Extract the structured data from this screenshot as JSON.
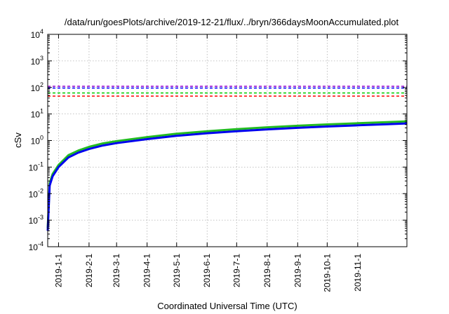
{
  "chart_data": {
    "type": "line",
    "title": "/data/run/goesPlots/archive/2019-12-21/flux/../bryn/366daysMoonAccumulated.plot",
    "xlabel": "Coordinated Universal Time (UTC)",
    "ylabel": "cSv",
    "yscale": "log",
    "ylim_exponents": [
      -4,
      4
    ],
    "y_tick_base": "10",
    "y_tick_exponents": [
      "-4",
      "-3",
      "-2",
      "-1",
      "0",
      "1",
      "2",
      "3",
      "4"
    ],
    "xlim": [
      "2018-12-21",
      "2019-12-21"
    ],
    "x_ticks": [
      "2019-1-1",
      "2019-2-1",
      "2019-3-1",
      "2019-4-1",
      "2019-5-1",
      "2019-6-1",
      "2019-7-1",
      "2019-8-1",
      "2019-9-1",
      "2019-10-1",
      "2019-11-1"
    ],
    "grid": true,
    "reference_lines": [
      {
        "y": 110,
        "color": "#9400d3",
        "style": "dashed"
      },
      {
        "y": 95,
        "color": "#0000ff",
        "style": "dashed"
      },
      {
        "y": 62,
        "color": "#00cc00",
        "style": "dashed"
      },
      {
        "y": 47,
        "color": "#ff0000",
        "style": "dashed"
      }
    ],
    "series": [
      {
        "color": "#22bb22",
        "x": [
          "2018-12-21",
          "2018-12-23",
          "2018-12-26",
          "2019-1-1",
          "2019-1-11",
          "2019-1-21",
          "2019-2-1",
          "2019-2-15",
          "2019-3-1",
          "2019-4-1",
          "2019-5-1",
          "2019-6-1",
          "2019-7-1",
          "2019-8-1",
          "2019-9-1",
          "2019-10-1",
          "2019-11-1",
          "2019-12-1",
          "2019-12-21"
        ],
        "y": [
          0.0005,
          0.025,
          0.055,
          0.12,
          0.28,
          0.42,
          0.58,
          0.78,
          0.95,
          1.35,
          1.8,
          2.25,
          2.7,
          3.15,
          3.6,
          4.05,
          4.5,
          4.95,
          5.3
        ]
      },
      {
        "color": "#0000ee",
        "x": [
          "2018-12-21",
          "2018-12-23",
          "2018-12-26",
          "2019-1-1",
          "2019-1-11",
          "2019-1-21",
          "2019-2-1",
          "2019-2-15",
          "2019-3-1",
          "2019-4-1",
          "2019-5-1",
          "2019-6-1",
          "2019-7-1",
          "2019-8-1",
          "2019-9-1",
          "2019-10-1",
          "2019-11-1",
          "2019-12-1",
          "2019-12-21"
        ],
        "y": [
          0.0004,
          0.02,
          0.045,
          0.1,
          0.23,
          0.35,
          0.48,
          0.65,
          0.8,
          1.13,
          1.5,
          1.88,
          2.25,
          2.63,
          3.0,
          3.38,
          3.75,
          4.13,
          4.4
        ]
      }
    ]
  }
}
